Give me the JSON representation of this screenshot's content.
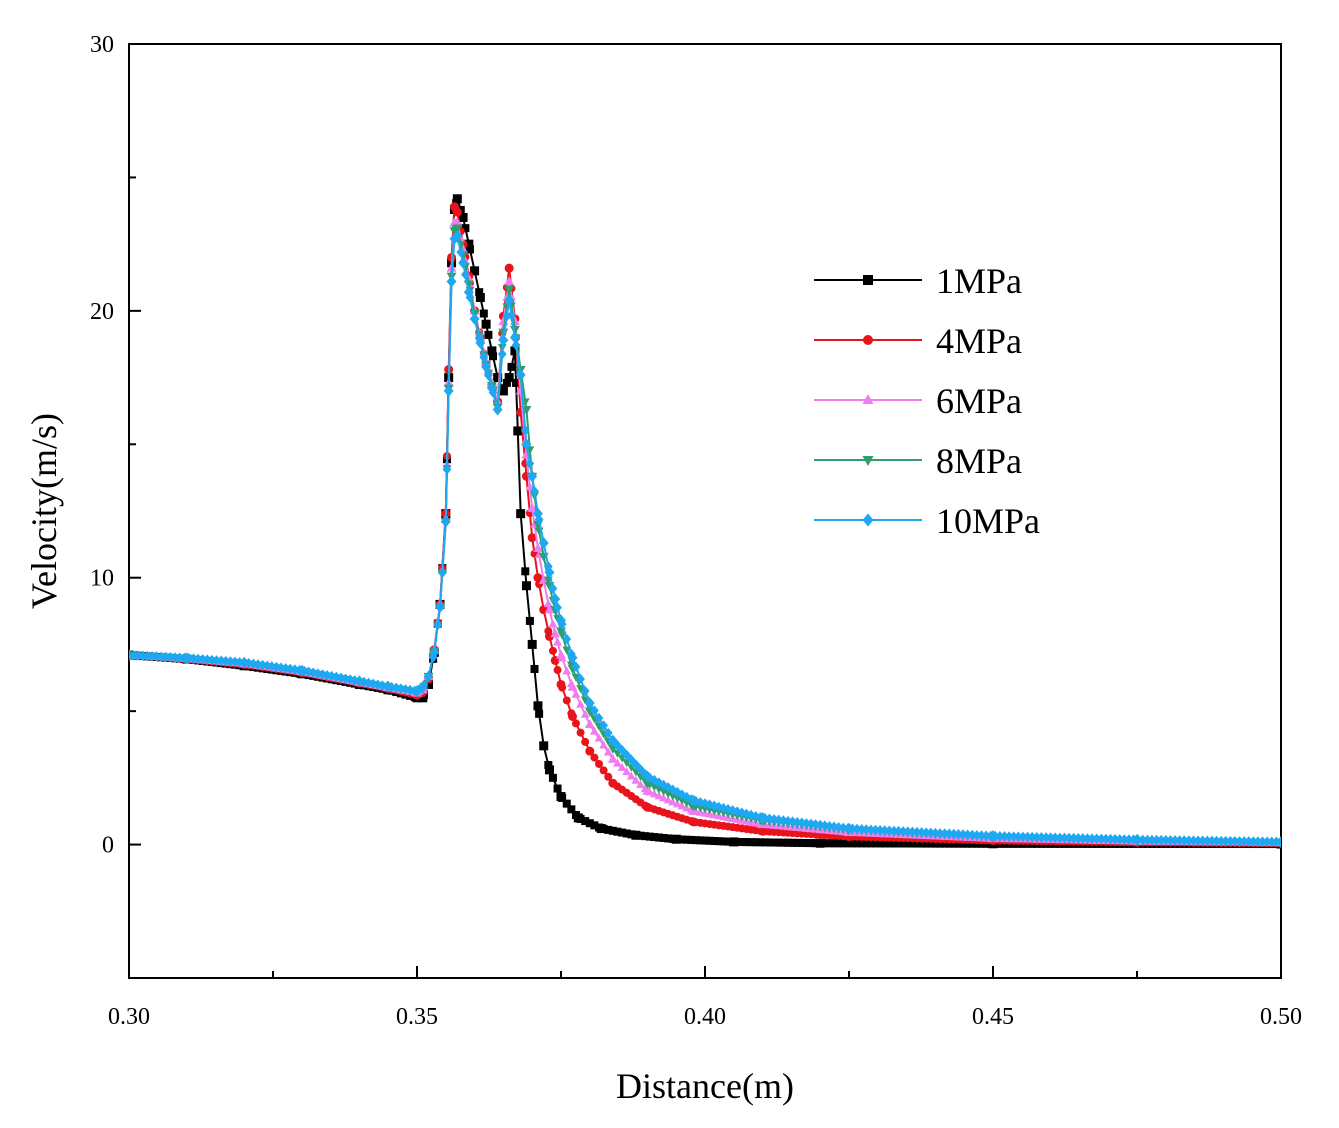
{
  "chart_data": {
    "type": "line",
    "xlabel": "Distance(m)",
    "ylabel": "Velocity(m/s)",
    "xlim": [
      0.3,
      0.5
    ],
    "ylim": [
      -5,
      30
    ],
    "x_ticks": [
      "0.30",
      "0.35",
      "0.40",
      "0.45",
      "0.50"
    ],
    "x_tick_values": [
      0.3,
      0.35,
      0.4,
      0.45,
      0.5
    ],
    "y_ticks": [
      "0",
      "10",
      "20",
      "30"
    ],
    "y_tick_values": [
      0,
      10,
      20,
      30
    ],
    "legend_position": "upper-right",
    "grid": false,
    "series": [
      {
        "name": "1MPa",
        "color": "#000000",
        "marker": "square",
        "points": [
          [
            0.3,
            7.1
          ],
          [
            0.31,
            6.95
          ],
          [
            0.32,
            6.7
          ],
          [
            0.33,
            6.4
          ],
          [
            0.34,
            6.0
          ],
          [
            0.345,
            5.8
          ],
          [
            0.35,
            5.5
          ],
          [
            0.351,
            5.5
          ],
          [
            0.352,
            6.0
          ],
          [
            0.353,
            7.2
          ],
          [
            0.354,
            9.0
          ],
          [
            0.355,
            12.4
          ],
          [
            0.3555,
            17.5
          ],
          [
            0.356,
            21.8
          ],
          [
            0.3565,
            23.8
          ],
          [
            0.357,
            24.2
          ],
          [
            0.358,
            23.5
          ],
          [
            0.359,
            22.5
          ],
          [
            0.36,
            21.5
          ],
          [
            0.361,
            20.5
          ],
          [
            0.362,
            19.5
          ],
          [
            0.363,
            18.5
          ],
          [
            0.364,
            17.5
          ],
          [
            0.365,
            17.0
          ],
          [
            0.366,
            17.5
          ],
          [
            0.367,
            18.5
          ],
          [
            0.3675,
            15.5
          ],
          [
            0.368,
            12.4
          ],
          [
            0.369,
            9.7
          ],
          [
            0.37,
            7.5
          ],
          [
            0.371,
            5.2
          ],
          [
            0.372,
            3.7
          ],
          [
            0.373,
            2.8
          ],
          [
            0.375,
            1.8
          ],
          [
            0.378,
            1.0
          ],
          [
            0.382,
            0.6
          ],
          [
            0.388,
            0.35
          ],
          [
            0.395,
            0.2
          ],
          [
            0.405,
            0.1
          ],
          [
            0.42,
            0.05
          ],
          [
            0.45,
            0.03
          ],
          [
            0.5,
            0.02
          ]
        ]
      },
      {
        "name": "4MPa",
        "color": "#e8131b",
        "marker": "circle",
        "points": [
          [
            0.3,
            7.1
          ],
          [
            0.31,
            6.95
          ],
          [
            0.32,
            6.75
          ],
          [
            0.33,
            6.45
          ],
          [
            0.34,
            6.05
          ],
          [
            0.345,
            5.85
          ],
          [
            0.35,
            5.6
          ],
          [
            0.351,
            5.7
          ],
          [
            0.352,
            6.2
          ],
          [
            0.353,
            7.3
          ],
          [
            0.354,
            9.0
          ],
          [
            0.355,
            12.4
          ],
          [
            0.3555,
            17.8
          ],
          [
            0.356,
            22.0
          ],
          [
            0.3565,
            23.9
          ],
          [
            0.357,
            23.7
          ],
          [
            0.358,
            22.5
          ],
          [
            0.359,
            21.3
          ],
          [
            0.36,
            20.0
          ],
          [
            0.361,
            19.0
          ],
          [
            0.362,
            18.0
          ],
          [
            0.363,
            17.2
          ],
          [
            0.364,
            16.6
          ],
          [
            0.365,
            19.8
          ],
          [
            0.366,
            21.6
          ],
          [
            0.367,
            19.7
          ],
          [
            0.368,
            16.2
          ],
          [
            0.369,
            13.8
          ],
          [
            0.37,
            11.5
          ],
          [
            0.371,
            10.0
          ],
          [
            0.372,
            8.8
          ],
          [
            0.373,
            7.8
          ],
          [
            0.374,
            6.9
          ],
          [
            0.375,
            6.0
          ],
          [
            0.377,
            4.8
          ],
          [
            0.38,
            3.5
          ],
          [
            0.384,
            2.3
          ],
          [
            0.39,
            1.4
          ],
          [
            0.398,
            0.85
          ],
          [
            0.41,
            0.5
          ],
          [
            0.425,
            0.3
          ],
          [
            0.45,
            0.15
          ],
          [
            0.475,
            0.08
          ],
          [
            0.5,
            0.05
          ]
        ]
      },
      {
        "name": "6MPa",
        "color": "#f07cf0",
        "marker": "triangle-up",
        "points": [
          [
            0.3,
            7.1
          ],
          [
            0.31,
            6.97
          ],
          [
            0.32,
            6.78
          ],
          [
            0.33,
            6.48
          ],
          [
            0.34,
            6.08
          ],
          [
            0.345,
            5.88
          ],
          [
            0.35,
            5.68
          ],
          [
            0.351,
            5.8
          ],
          [
            0.352,
            6.3
          ],
          [
            0.353,
            7.3
          ],
          [
            0.354,
            9.0
          ],
          [
            0.355,
            12.2
          ],
          [
            0.3555,
            17.3
          ],
          [
            0.356,
            21.6
          ],
          [
            0.3565,
            23.3
          ],
          [
            0.357,
            23.3
          ],
          [
            0.358,
            22.3
          ],
          [
            0.359,
            21.2
          ],
          [
            0.36,
            20.0
          ],
          [
            0.361,
            19.0
          ],
          [
            0.362,
            18.1
          ],
          [
            0.363,
            17.3
          ],
          [
            0.364,
            16.6
          ],
          [
            0.365,
            19.6
          ],
          [
            0.366,
            21.1
          ],
          [
            0.367,
            19.6
          ],
          [
            0.368,
            17.0
          ],
          [
            0.369,
            14.6
          ],
          [
            0.37,
            12.6
          ],
          [
            0.371,
            11.1
          ],
          [
            0.372,
            9.9
          ],
          [
            0.373,
            8.8
          ],
          [
            0.374,
            7.9
          ],
          [
            0.375,
            7.1
          ],
          [
            0.377,
            5.9
          ],
          [
            0.38,
            4.5
          ],
          [
            0.384,
            3.2
          ],
          [
            0.39,
            2.0
          ],
          [
            0.398,
            1.25
          ],
          [
            0.41,
            0.75
          ],
          [
            0.425,
            0.45
          ],
          [
            0.45,
            0.22
          ],
          [
            0.475,
            0.12
          ],
          [
            0.5,
            0.07
          ]
        ]
      },
      {
        "name": "8MPa",
        "color": "#2e9e6a",
        "marker": "triangle-down",
        "points": [
          [
            0.3,
            7.1
          ],
          [
            0.31,
            6.98
          ],
          [
            0.32,
            6.8
          ],
          [
            0.33,
            6.5
          ],
          [
            0.34,
            6.1
          ],
          [
            0.345,
            5.9
          ],
          [
            0.35,
            5.72
          ],
          [
            0.351,
            5.85
          ],
          [
            0.352,
            6.3
          ],
          [
            0.353,
            7.25
          ],
          [
            0.354,
            8.9
          ],
          [
            0.355,
            12.1
          ],
          [
            0.3555,
            17.1
          ],
          [
            0.356,
            21.3
          ],
          [
            0.3565,
            23.0
          ],
          [
            0.357,
            23.1
          ],
          [
            0.358,
            22.1
          ],
          [
            0.359,
            21.0
          ],
          [
            0.36,
            19.9
          ],
          [
            0.361,
            18.9
          ],
          [
            0.362,
            18.0
          ],
          [
            0.363,
            17.2
          ],
          [
            0.364,
            16.4
          ],
          [
            0.365,
            19.2
          ],
          [
            0.366,
            20.8
          ],
          [
            0.367,
            19.3
          ],
          [
            0.368,
            17.8
          ],
          [
            0.369,
            16.3
          ],
          [
            0.37,
            13.8
          ],
          [
            0.371,
            12.0
          ],
          [
            0.372,
            10.8
          ],
          [
            0.373,
            9.7
          ],
          [
            0.374,
            8.8
          ],
          [
            0.375,
            8.0
          ],
          [
            0.377,
            6.6
          ],
          [
            0.38,
            5.0
          ],
          [
            0.384,
            3.6
          ],
          [
            0.39,
            2.3
          ],
          [
            0.398,
            1.45
          ],
          [
            0.41,
            0.9
          ],
          [
            0.425,
            0.55
          ],
          [
            0.45,
            0.28
          ],
          [
            0.475,
            0.15
          ],
          [
            0.5,
            0.08
          ]
        ]
      },
      {
        "name": "10MPa",
        "color": "#1ea8f2",
        "marker": "diamond",
        "points": [
          [
            0.3,
            7.1
          ],
          [
            0.31,
            6.99
          ],
          [
            0.32,
            6.82
          ],
          [
            0.33,
            6.52
          ],
          [
            0.34,
            6.12
          ],
          [
            0.345,
            5.92
          ],
          [
            0.35,
            5.75
          ],
          [
            0.351,
            5.9
          ],
          [
            0.352,
            6.3
          ],
          [
            0.353,
            7.2
          ],
          [
            0.354,
            8.9
          ],
          [
            0.355,
            12.1
          ],
          [
            0.3555,
            17.0
          ],
          [
            0.356,
            21.1
          ],
          [
            0.3565,
            22.7
          ],
          [
            0.357,
            22.8
          ],
          [
            0.358,
            21.8
          ],
          [
            0.359,
            20.7
          ],
          [
            0.36,
            19.7
          ],
          [
            0.361,
            18.8
          ],
          [
            0.362,
            17.9
          ],
          [
            0.363,
            17.1
          ],
          [
            0.364,
            16.3
          ],
          [
            0.365,
            18.9
          ],
          [
            0.366,
            20.4
          ],
          [
            0.367,
            19.0
          ],
          [
            0.368,
            17.6
          ],
          [
            0.369,
            15.0
          ],
          [
            0.37,
            13.8
          ],
          [
            0.371,
            12.4
          ],
          [
            0.372,
            11.3
          ],
          [
            0.373,
            10.2
          ],
          [
            0.374,
            9.2
          ],
          [
            0.375,
            8.4
          ],
          [
            0.377,
            7.0
          ],
          [
            0.38,
            5.3
          ],
          [
            0.384,
            3.9
          ],
          [
            0.39,
            2.55
          ],
          [
            0.398,
            1.65
          ],
          [
            0.41,
            1.0
          ],
          [
            0.425,
            0.6
          ],
          [
            0.45,
            0.32
          ],
          [
            0.475,
            0.18
          ],
          [
            0.5,
            0.1
          ]
        ]
      }
    ]
  }
}
